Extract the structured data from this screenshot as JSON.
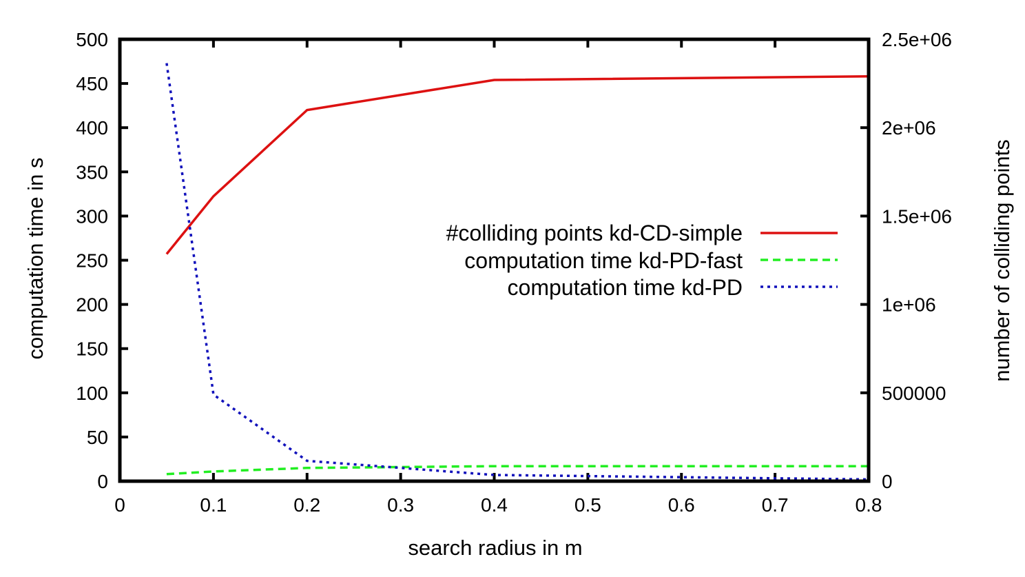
{
  "chart_data": {
    "type": "line",
    "title": "",
    "xlabel": "search radius in m",
    "ylabel": "computation time in s",
    "y2label": "number of colliding points",
    "xlim": [
      0,
      0.8
    ],
    "ylim": [
      0,
      500
    ],
    "y2lim": [
      0,
      2500000
    ],
    "x_ticks": [
      {
        "value": 0,
        "label": "0"
      },
      {
        "value": 0.1,
        "label": "0.1"
      },
      {
        "value": 0.2,
        "label": "0.2"
      },
      {
        "value": 0.3,
        "label": "0.3"
      },
      {
        "value": 0.4,
        "label": "0.4"
      },
      {
        "value": 0.5,
        "label": "0.5"
      },
      {
        "value": 0.6,
        "label": "0.6"
      },
      {
        "value": 0.7,
        "label": "0.7"
      },
      {
        "value": 0.8,
        "label": "0.8"
      }
    ],
    "y_ticks": [
      {
        "value": 0,
        "label": "0"
      },
      {
        "value": 50,
        "label": "50"
      },
      {
        "value": 100,
        "label": "100"
      },
      {
        "value": 150,
        "label": "150"
      },
      {
        "value": 200,
        "label": "200"
      },
      {
        "value": 250,
        "label": "250"
      },
      {
        "value": 300,
        "label": "300"
      },
      {
        "value": 350,
        "label": "350"
      },
      {
        "value": 400,
        "label": "400"
      },
      {
        "value": 450,
        "label": "450"
      },
      {
        "value": 500,
        "label": "500"
      }
    ],
    "y2_ticks": [
      {
        "value": 0,
        "label": "0"
      },
      {
        "value": 500000,
        "label": "500000"
      },
      {
        "value": 1000000,
        "label": "1e+06"
      },
      {
        "value": 1500000,
        "label": "1.5e+06"
      },
      {
        "value": 2000000,
        "label": "2e+06"
      },
      {
        "value": 2500000,
        "label": "2.5e+06"
      }
    ],
    "legend_position": "center-right",
    "grid": false,
    "series": [
      {
        "name": "#colliding points kd-CD-simple",
        "axis": "y2",
        "color": "#dd1111",
        "style": "solid",
        "x": [
          0.05,
          0.1,
          0.2,
          0.4,
          0.8
        ],
        "values": [
          1285000,
          1612000,
          2100000,
          2270000,
          2290000
        ]
      },
      {
        "name": "computation time kd-PD-fast",
        "axis": "y",
        "color": "#22ee22",
        "style": "dashed",
        "x": [
          0.05,
          0.1,
          0.2,
          0.4,
          0.8
        ],
        "values": [
          8,
          11,
          15,
          17,
          17
        ]
      },
      {
        "name": "computation time kd-PD",
        "axis": "y",
        "color": "#1111bb",
        "style": "dotted",
        "x": [
          0.05,
          0.1,
          0.2,
          0.4,
          0.8
        ],
        "values": [
          473,
          98,
          23,
          7,
          2
        ]
      }
    ]
  }
}
